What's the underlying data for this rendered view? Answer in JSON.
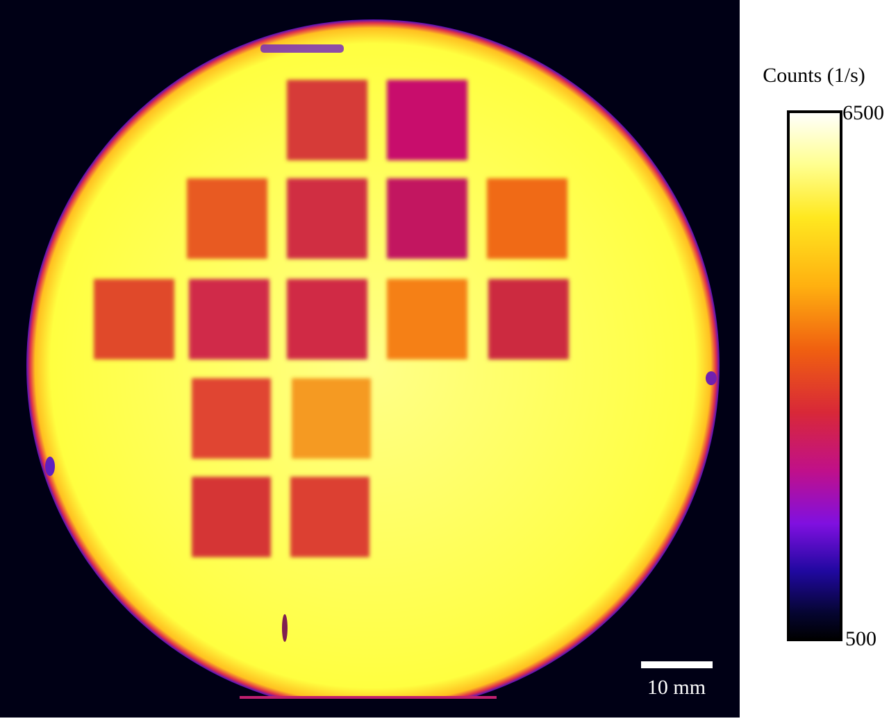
{
  "colorbar": {
    "label": "Counts (1/s)",
    "max": 6500,
    "min": 500
  },
  "scale_bar": {
    "label": "10 mm"
  }
}
